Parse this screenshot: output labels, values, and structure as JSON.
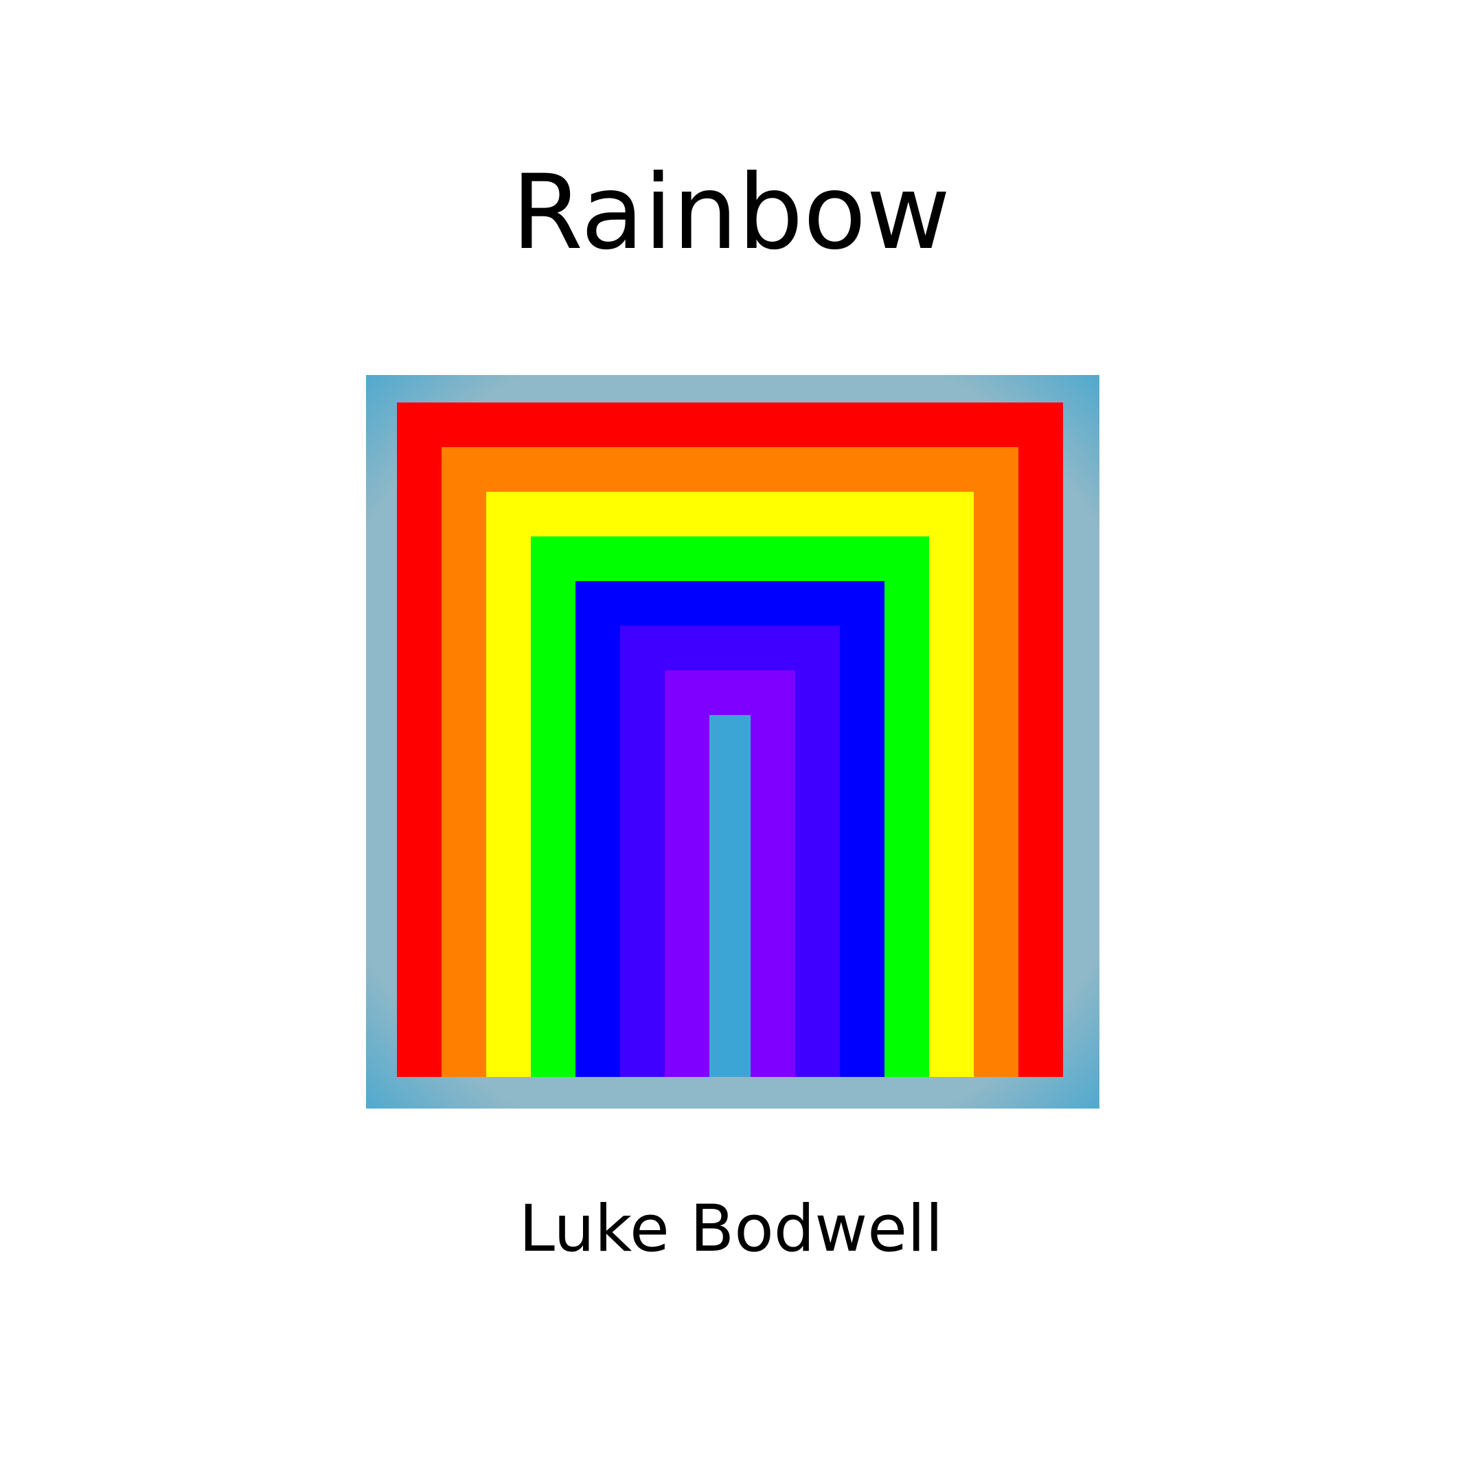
{
  "cover": {
    "title": "Rainbow",
    "author": "Luke Bodwell"
  },
  "artwork": {
    "frame_color": "#4aa8cf",
    "frame_glow_color": "#8fb8c8",
    "band_colors": [
      "#ff0000",
      "#ff8000",
      "#ffff00",
      "#00ff00",
      "#0000ff",
      "#4000ff",
      "#8000ff"
    ],
    "core_color": "#3da5d6"
  }
}
